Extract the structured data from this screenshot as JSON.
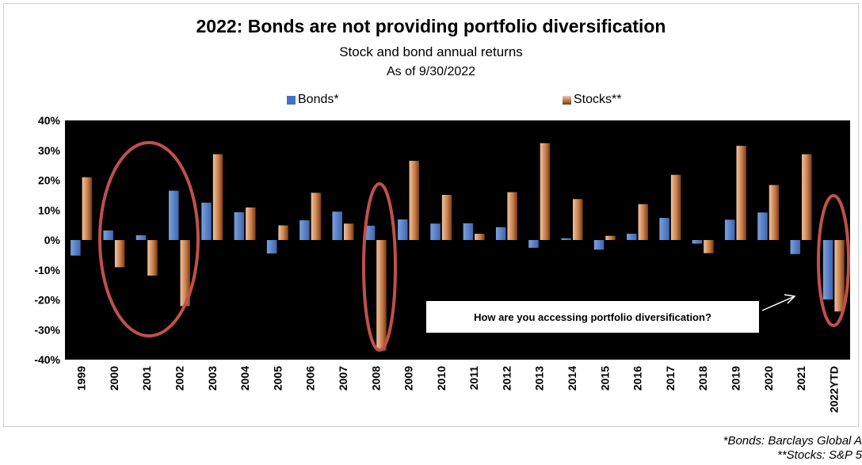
{
  "chart_data": {
    "type": "bar",
    "title": "2022: Bonds are not providing portfolio diversification",
    "subtitle": "Stock and bond annual returns",
    "as_of": "As of 9/30/2022",
    "categories": [
      "1999",
      "2000",
      "2001",
      "2002",
      "2003",
      "2004",
      "2005",
      "2006",
      "2007",
      "2008",
      "2009",
      "2010",
      "2011",
      "2012",
      "2013",
      "2014",
      "2015",
      "2016",
      "2017",
      "2018",
      "2019",
      "2020",
      "2021",
      "2022YTD"
    ],
    "series": [
      {
        "name": "Bonds*",
        "color": "#4472c4",
        "values": [
          -5.2,
          3.2,
          1.6,
          16.5,
          12.5,
          9.3,
          -4.5,
          6.6,
          9.5,
          4.8,
          6.9,
          5.5,
          5.6,
          4.3,
          -2.6,
          0.6,
          -3.2,
          2.1,
          7.4,
          -1.2,
          6.8,
          9.2,
          -4.7,
          -19.9
        ]
      },
      {
        "name": "Stocks**",
        "color": "#c55a11",
        "values": [
          21.0,
          -9.1,
          -11.9,
          -22.1,
          28.7,
          10.9,
          4.9,
          15.8,
          5.5,
          -37.0,
          26.5,
          15.1,
          2.1,
          16.0,
          32.4,
          13.7,
          1.4,
          12.0,
          21.8,
          -4.4,
          31.5,
          18.4,
          28.7,
          -23.9
        ]
      }
    ],
    "y_ticks": [
      "40%",
      "30%",
      "20%",
      "10%",
      "0%",
      "-10%",
      "-20%",
      "-30%",
      "-40%"
    ],
    "ylim": [
      -40,
      40
    ],
    "grid": false,
    "legend": "top-center",
    "annotation": "How are you accessing portfolio diversification?",
    "highlighted_categories": [
      "2000",
      "2001",
      "2002",
      "2008",
      "2022YTD"
    ]
  },
  "footnotes": {
    "bonds": "*Bonds: Barclays Global A",
    "stocks": "**Stocks:  S&P 5"
  },
  "colors": {
    "plot_background": "#000000",
    "circle": "#c0504d"
  }
}
